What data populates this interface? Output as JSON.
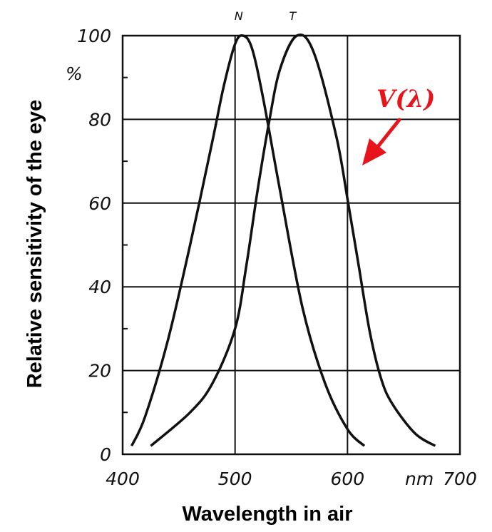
{
  "chart_data": {
    "type": "line",
    "title": "",
    "xlabel": "Wavelength in air",
    "ylabel": "Relative sensitivity of the eye",
    "x_unit": "nm",
    "xlim": [
      400,
      700
    ],
    "ylim": [
      0,
      100
    ],
    "x_ticks": [
      "400",
      "500",
      "600",
      "700"
    ],
    "y_ticks": [
      "0",
      "20",
      "40",
      "60",
      "80",
      "100"
    ],
    "y_unit": "%",
    "grid": true,
    "annotation": {
      "text": "V(λ)",
      "color": "#e8141c",
      "points_to": "T"
    },
    "series": [
      {
        "name": "N",
        "x": [
          408,
          420,
          440,
          460,
          480,
          490,
          500,
          507,
          515,
          525,
          540,
          560,
          580,
          600,
          615
        ],
        "y": [
          2,
          9,
          27,
          50,
          75,
          88,
          98,
          100,
          97,
          85,
          63,
          35,
          17,
          6,
          2
        ]
      },
      {
        "name": "T",
        "x": [
          425,
          460,
          480,
          500,
          510,
          520,
          530,
          540,
          555,
          570,
          590,
          600,
          610,
          620,
          630,
          640,
          660,
          678
        ],
        "y": [
          2,
          10,
          17,
          30,
          45,
          63,
          79,
          92,
          100,
          96,
          76,
          61,
          45,
          29,
          18,
          12,
          5,
          2
        ]
      }
    ]
  }
}
